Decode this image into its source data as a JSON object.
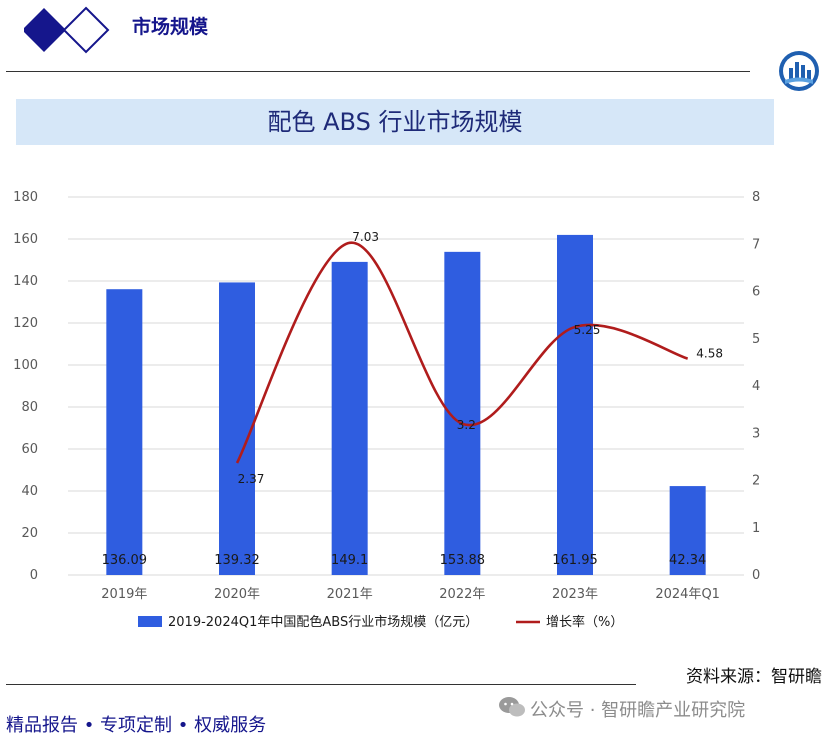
{
  "header": {
    "title": "市场规模"
  },
  "chart_data": {
    "type": "bar",
    "title": "配色 ABS 行业市场规模",
    "categories": [
      "2019年",
      "2020年",
      "2021年",
      "2022年",
      "2023年",
      "2024年Q1"
    ],
    "series": [
      {
        "name": "2019-2024Q1年中国配色ABS行业市场规模（亿元）",
        "type": "bar",
        "axis": "left",
        "color": "#2f5de0",
        "values": [
          136.09,
          139.32,
          149.1,
          153.88,
          161.95,
          42.34
        ],
        "labels": [
          "136.09",
          "139.32",
          "149.1",
          "153.88",
          "161.95",
          "42.34"
        ]
      },
      {
        "name": "增长率（%）",
        "type": "line",
        "axis": "right",
        "color": "#b01c1c",
        "values": [
          null,
          2.37,
          7.03,
          3.2,
          5.25,
          4.58
        ],
        "labels": [
          "",
          "2.37",
          "7.03",
          "3.2",
          "5.25",
          "4.58"
        ]
      }
    ],
    "y_left": {
      "min": 0,
      "max": 180,
      "ticks": [
        "0",
        "20",
        "40",
        "60",
        "80",
        "100",
        "120",
        "140",
        "160",
        "180"
      ]
    },
    "y_right": {
      "min": 0,
      "max": 8,
      "ticks": [
        "0",
        "1",
        "2",
        "3",
        "4",
        "5",
        "6",
        "7",
        "8"
      ]
    },
    "grid": true,
    "legend_position": "bottom"
  },
  "source_text": "资料来源：智研瞻",
  "footer": {
    "slogan": "精品报告 •  专项定制 • 权威服务",
    "watermark": "公众号 · 智研瞻产业研究院"
  },
  "colors": {
    "brand_navy": "#15168c",
    "bar": "#2f5de0",
    "line": "#b01c1c",
    "title_band": "#d6e7f8"
  },
  "icons": [
    "diamond-logo-icon",
    "brand-badge-icon",
    "wechat-icon"
  ]
}
